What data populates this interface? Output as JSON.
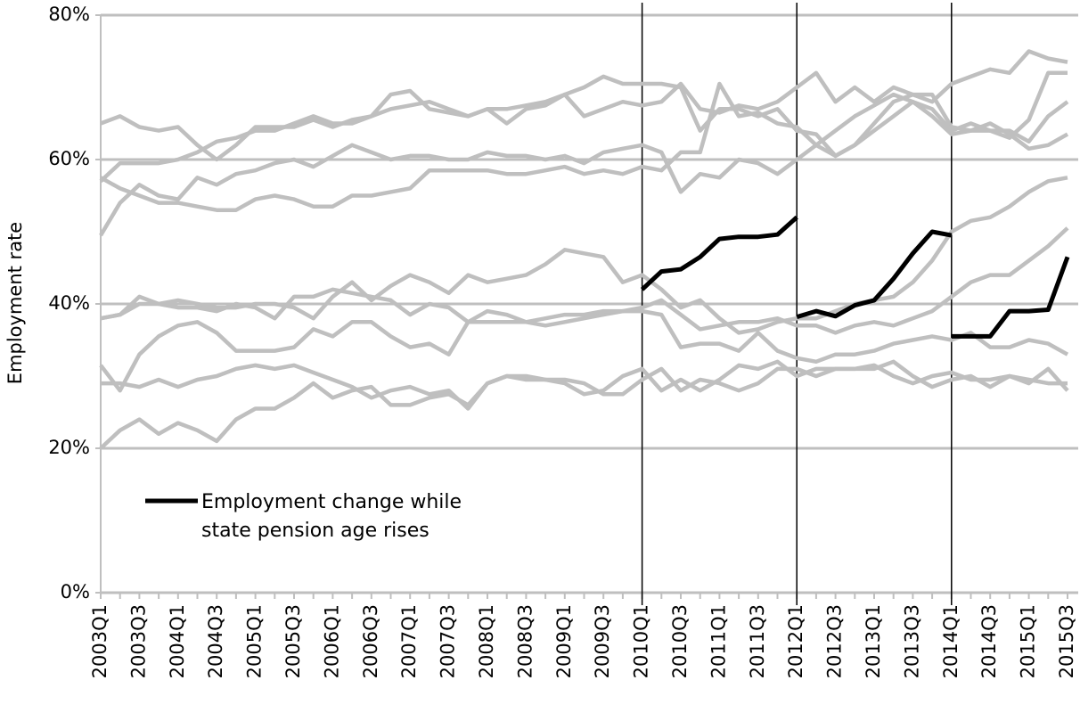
{
  "chart_data": {
    "type": "line",
    "y_label": "Employment rate",
    "categories": [
      "2003Q1",
      null,
      "2003Q3",
      null,
      "2004Q1",
      null,
      "2004Q3",
      null,
      "2005Q1",
      null,
      "2005Q3",
      null,
      "2006Q1",
      null,
      "2006Q3",
      null,
      "2007Q1",
      null,
      "2007Q3",
      null,
      "2008Q1",
      null,
      "2008Q3",
      null,
      "2009Q1",
      null,
      "2009Q3",
      null,
      "2010Q1",
      null,
      "2010Q3",
      null,
      "2011Q1",
      null,
      "2011Q3",
      null,
      "2012Q1",
      null,
      "2012Q3",
      null,
      "2013Q1",
      null,
      "2013Q3",
      null,
      "2014Q1",
      null,
      "2014Q3",
      null,
      "2015Q1",
      null,
      "2015Q3"
    ],
    "ylim": [
      0,
      80
    ],
    "yticks": [
      {
        "value": 0,
        "label": "0%"
      },
      {
        "value": 20,
        "label": "20%"
      },
      {
        "value": 40,
        "label": "40%"
      },
      {
        "value": 60,
        "label": "60%"
      },
      {
        "value": 80,
        "label": "80%"
      }
    ],
    "grid": true,
    "series": [
      {
        "color": "#bfbfbf",
        "values": [
          65,
          66,
          64.5,
          64,
          64.5,
          62,
          60,
          62,
          64.5,
          64.5,
          64.5,
          65.5,
          64.5,
          65.5,
          66,
          67,
          67.5,
          68,
          67,
          66,
          67,
          65,
          67,
          67.5,
          69,
          66,
          67,
          68,
          67.5,
          68,
          70.5,
          67,
          66.5,
          67.5,
          67,
          68,
          70,
          72,
          68,
          70,
          68,
          70,
          69,
          68,
          70.5,
          71.5,
          72.5,
          72,
          75,
          74,
          73.5
        ]
      },
      {
        "color": "#bfbfbf",
        "values": [
          57,
          59.5,
          59.5,
          59.5,
          60,
          61,
          62.5,
          63,
          64,
          64,
          65,
          66,
          65,
          65,
          66,
          69,
          69.5,
          67,
          66.5,
          66,
          67,
          67,
          67.5,
          68,
          69,
          70,
          71.5,
          70.5,
          70.5,
          70.5,
          70,
          64,
          67,
          67,
          66,
          67,
          64,
          63.5,
          60.5,
          62,
          65,
          68,
          69,
          69,
          64.5,
          64,
          64,
          64,
          62.5,
          66,
          68
        ]
      },
      {
        "color": "#bfbfbf",
        "values": [
          49.5,
          54,
          56.5,
          55,
          54.5,
          57.5,
          56.5,
          58,
          58.5,
          59.5,
          60,
          59,
          60.5,
          62,
          61,
          60,
          60.5,
          60.5,
          60,
          60,
          61,
          60.5,
          60.5,
          60,
          60.5,
          59.5,
          61,
          61.5,
          62,
          61,
          55.5,
          58,
          57.5,
          60,
          59.5,
          58,
          60,
          62,
          64,
          66,
          67.5,
          69,
          68,
          66,
          63.5,
          64,
          65,
          63.5,
          61.5,
          62,
          63.5
        ]
      },
      {
        "color": "#bfbfbf",
        "values": [
          57.5,
          56,
          55,
          54,
          54,
          53.5,
          53,
          53,
          54.5,
          55,
          54.5,
          53.5,
          53.5,
          55,
          55,
          55.5,
          56,
          58.5,
          58.5,
          58.5,
          58.5,
          58,
          58,
          58.5,
          59,
          58,
          58.5,
          58,
          59,
          58.5,
          61,
          61,
          70.5,
          66,
          66.5,
          65,
          64.5,
          62,
          60.5,
          62,
          64,
          66,
          68,
          67,
          64,
          65,
          64,
          63,
          65.5,
          72,
          72
        ]
      },
      {
        "color": "#bfbfbf",
        "values": [
          38,
          38.5,
          41,
          40,
          40.5,
          40,
          39.5,
          39.5,
          40,
          40,
          39.5,
          38,
          41,
          43,
          40.5,
          42.5,
          44,
          43,
          41.5,
          44,
          43,
          43.5,
          44,
          45.5,
          47.5,
          47,
          46.5,
          43,
          44,
          42,
          39.5,
          40.5,
          38,
          36,
          36.5,
          37.5,
          38,
          38,
          39,
          40,
          40.5,
          41,
          43,
          46,
          50,
          51.5,
          52,
          53.5,
          55.5,
          57,
          57.5
        ]
      },
      {
        "color": "#bfbfbf",
        "values": [
          29,
          29,
          28.5,
          29.5,
          28.5,
          29.5,
          30,
          31,
          31.5,
          31,
          31.5,
          30.5,
          29.5,
          28.5,
          27,
          28,
          28.5,
          27.5,
          28,
          25.5,
          29,
          30,
          30,
          29.5,
          29.5,
          29,
          27.5,
          27.5,
          29.5,
          31,
          28,
          29.5,
          29,
          28,
          29,
          31,
          31,
          30,
          31,
          31,
          31,
          32,
          30,
          28.5,
          29.5,
          30,
          28.5,
          30,
          29,
          31,
          28
        ]
      },
      {
        "color": "#bfbfbf",
        "values": [
          31.5,
          28,
          33,
          35.5,
          37,
          37.5,
          36,
          33.5,
          33.5,
          33.5,
          34,
          36.5,
          35.5,
          37.5,
          37.5,
          35.5,
          34,
          34.5,
          33,
          37.5,
          39,
          38.5,
          37.5,
          37,
          37.5,
          38,
          38.5,
          39,
          39.5,
          40.5,
          38.5,
          36.5,
          37,
          37.5,
          37.5,
          38,
          37,
          37,
          36,
          37,
          37.5,
          37,
          38,
          39,
          41,
          43,
          44,
          44,
          46,
          48,
          50.5
        ]
      },
      {
        "color": "#bfbfbf",
        "values": [
          20,
          22.5,
          24,
          22,
          23.5,
          22.5,
          21,
          24,
          25.5,
          25.5,
          27,
          29,
          27,
          28,
          28.5,
          26,
          26,
          27,
          27.5,
          26,
          29,
          30,
          29.5,
          29.5,
          29,
          27.5,
          28,
          30,
          31,
          28,
          29.5,
          28,
          29.5,
          31.5,
          31,
          32,
          30,
          31,
          31,
          31,
          31.5,
          30,
          29,
          30,
          30.5,
          29.5,
          29.5,
          30,
          29.5,
          29,
          29
        ]
      },
      {
        "color": "#bfbfbf",
        "values": [
          38,
          38.5,
          40,
          40,
          39.5,
          39.5,
          39,
          40,
          39.5,
          38,
          41,
          41,
          42,
          41.5,
          41,
          40.5,
          38.5,
          40,
          39.5,
          37.5,
          37.5,
          37.5,
          37.5,
          38,
          38.5,
          38.5,
          39,
          39,
          39,
          38.5,
          34,
          34.5,
          34.5,
          33.5,
          36,
          33.5,
          32.5,
          32,
          33,
          33,
          33.5,
          34.5,
          35,
          35.5,
          35,
          36,
          34,
          34,
          35,
          34.5,
          33
        ]
      },
      {
        "name": "Employment change while state pension age rises",
        "color": "#000000",
        "start_line": true,
        "values": [
          null,
          null,
          null,
          null,
          null,
          null,
          null,
          null,
          null,
          null,
          null,
          null,
          null,
          null,
          null,
          null,
          null,
          null,
          null,
          null,
          null,
          null,
          null,
          null,
          null,
          null,
          null,
          null,
          42,
          44.5,
          44.8,
          46.5,
          49,
          49.3,
          49.3,
          49.6,
          52,
          null,
          null,
          null,
          null,
          null,
          null,
          null,
          null,
          null,
          null,
          null,
          null,
          null,
          null
        ]
      },
      {
        "color": "#000000",
        "start_line": true,
        "values": [
          null,
          null,
          null,
          null,
          null,
          null,
          null,
          null,
          null,
          null,
          null,
          null,
          null,
          null,
          null,
          null,
          null,
          null,
          null,
          null,
          null,
          null,
          null,
          null,
          null,
          null,
          null,
          null,
          null,
          null,
          null,
          null,
          null,
          null,
          null,
          null,
          38.2,
          39,
          38.3,
          39.8,
          40.5,
          43.5,
          47,
          50,
          49.5,
          null,
          null,
          null,
          null,
          null,
          null
        ]
      },
      {
        "color": "#000000",
        "start_line": true,
        "values": [
          null,
          null,
          null,
          null,
          null,
          null,
          null,
          null,
          null,
          null,
          null,
          null,
          null,
          null,
          null,
          null,
          null,
          null,
          null,
          null,
          null,
          null,
          null,
          null,
          null,
          null,
          null,
          null,
          null,
          null,
          null,
          null,
          null,
          null,
          null,
          null,
          null,
          null,
          null,
          null,
          null,
          null,
          null,
          null,
          35.5,
          35.5,
          35.5,
          39,
          39,
          39.2,
          46.5
        ]
      }
    ]
  }
}
